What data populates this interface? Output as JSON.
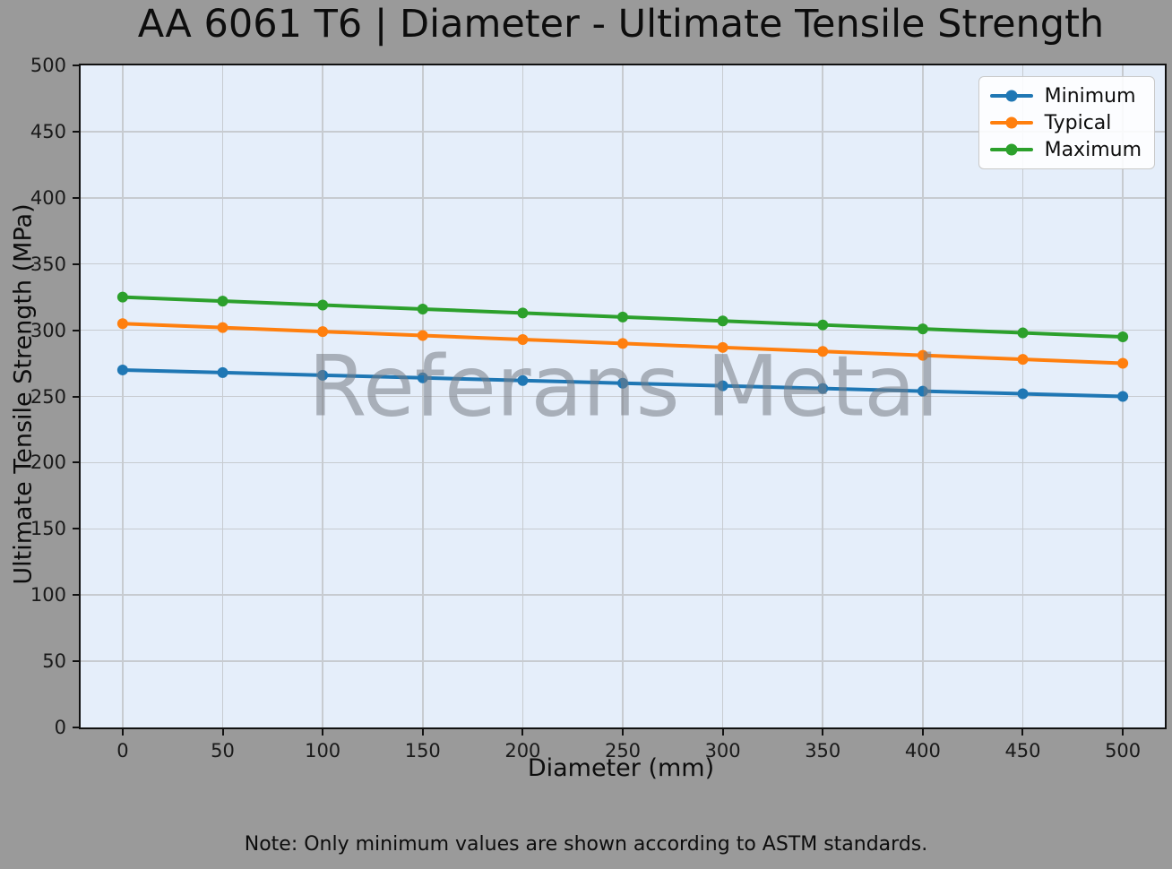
{
  "title": "AA 6061 T6 | Diameter - Ultimate Tensile Strength",
  "watermark": "Referans Metal",
  "note": "Note: Only minimum values are shown according to ASTM standards.",
  "chart_data": {
    "type": "line",
    "title": "AA 6061 T6 | Diameter - Ultimate Tensile Strength",
    "xlabel": "Diameter (mm)",
    "ylabel": "Ultimate Tensile Strength (MPa)",
    "x": [
      0,
      50,
      100,
      150,
      200,
      250,
      300,
      350,
      400,
      450,
      500
    ],
    "series": [
      {
        "name": "Minimum",
        "color": "#1f77b4",
        "values": [
          270,
          268,
          266,
          264,
          262,
          260,
          258,
          256,
          254,
          252,
          250
        ]
      },
      {
        "name": "Typical",
        "color": "#ff7f0e",
        "values": [
          305,
          302,
          299,
          296,
          293,
          290,
          287,
          284,
          281,
          278,
          275
        ]
      },
      {
        "name": "Maximum",
        "color": "#2ca02c",
        "values": [
          325,
          322,
          319,
          316,
          313,
          310,
          307,
          304,
          301,
          298,
          295
        ]
      }
    ],
    "x_ticks": [
      0,
      50,
      100,
      150,
      200,
      250,
      300,
      350,
      400,
      450,
      500
    ],
    "y_ticks": [
      0,
      50,
      100,
      150,
      200,
      250,
      300,
      350,
      400,
      450,
      500
    ],
    "xlim": [
      -21,
      521
    ],
    "ylim": [
      0,
      500
    ],
    "grid": true,
    "legend_position": "upper right",
    "marker": "circle"
  },
  "style": {
    "figure_bg": "#9a9a9a",
    "plot_bg": "#e5eefa",
    "grid_color": "#c7cbd0",
    "spine_color": "#111111",
    "watermark_color": "rgba(118,124,131,0.55)"
  }
}
